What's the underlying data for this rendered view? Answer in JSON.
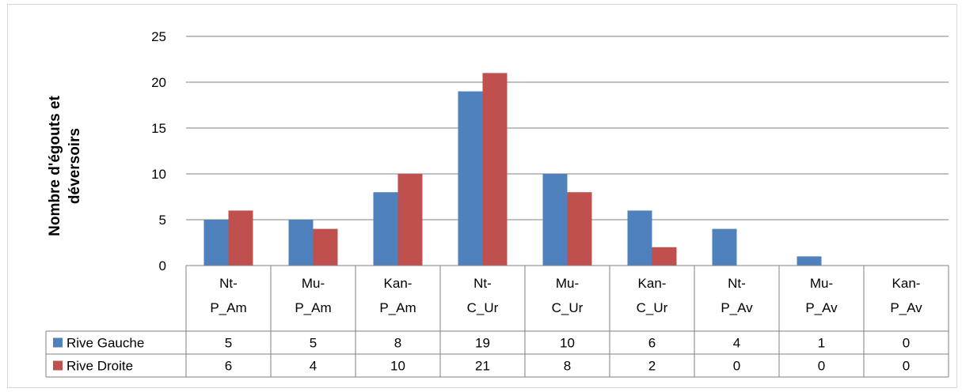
{
  "chart_data": {
    "type": "bar",
    "title": "",
    "xlabel": "",
    "ylabel": "Nombre d'égouts et déversoirs",
    "ylim": [
      0,
      25
    ],
    "yticks": [
      0,
      5,
      10,
      15,
      20,
      25
    ],
    "grid": true,
    "legend": "data-table",
    "categories": [
      [
        "Nt-",
        "P_Am"
      ],
      [
        "Mu-",
        "P_Am"
      ],
      [
        "Kan-",
        "P_Am"
      ],
      [
        "Nt-",
        "C_Ur"
      ],
      [
        "Mu-",
        "C_Ur"
      ],
      [
        "Kan-",
        "C_Ur"
      ],
      [
        "Nt-",
        "P_Av"
      ],
      [
        "Mu-",
        "P_Av"
      ],
      [
        "Kan-",
        "P_Av"
      ]
    ],
    "series": [
      {
        "name": "Rive Gauche",
        "color": "#4f81bd",
        "values": [
          5,
          5,
          8,
          19,
          10,
          6,
          4,
          1,
          0
        ]
      },
      {
        "name": "Rive Droite",
        "color": "#c0504d",
        "values": [
          6,
          4,
          10,
          21,
          8,
          2,
          0,
          0,
          0
        ]
      }
    ]
  }
}
